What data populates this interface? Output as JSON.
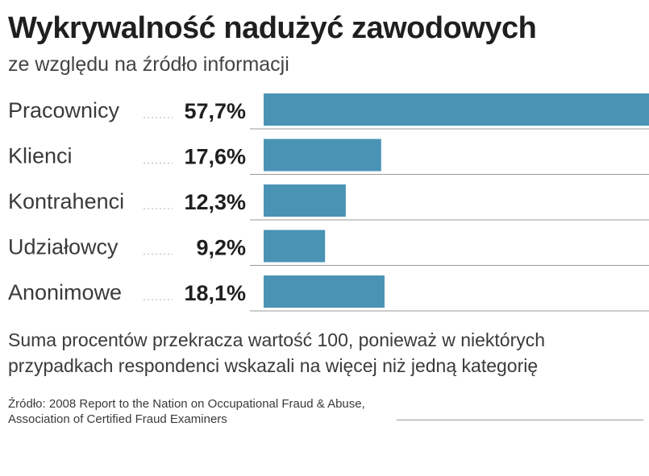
{
  "chart_data": {
    "type": "bar",
    "orientation": "horizontal",
    "title": "Wykrywalność nadużyć zawodowych",
    "subtitle": "ze względu na źródło informacji",
    "categories": [
      "Pracownicy",
      "Klienci",
      "Kontrahenci",
      "Udziałowcy",
      "Anonimowe"
    ],
    "values": [
      57.7,
      17.6,
      12.3,
      9.2,
      18.1
    ],
    "value_labels": [
      "57,7%",
      "17,6%",
      "12,3%",
      "9,2%",
      "18,1%"
    ],
    "unit": "%",
    "xlim": [
      0,
      57.7
    ],
    "bar_color": "#4a93b5",
    "grid": false,
    "legend": "none"
  },
  "note": "Suma procentów przekracza wartość 100, ponieważ w niektórych przypadkach respondenci wskazali na więcej niż jedną kategorię",
  "source": "Źródło: 2008 Report to the Nation on Occupational Fraud & Abuse, Association of Certified Fraud Examiners"
}
